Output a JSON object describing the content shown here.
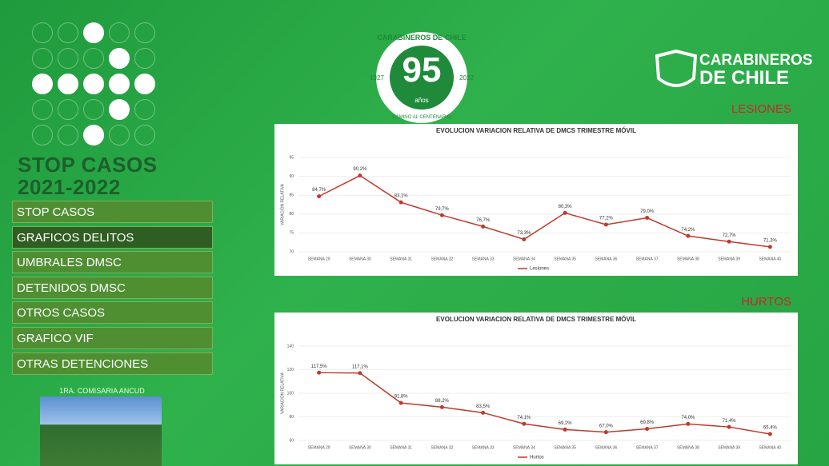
{
  "sidebar": {
    "title": "STOP CASOS",
    "subtitle": "2021-2022",
    "menu": [
      "STOP CASOS",
      "GRAFICOS DELITOS",
      "UMBRALES DMSC",
      "DETENIDOS DMSC",
      "OTROS CASOS",
      "GRAFICO VIF",
      "OTRAS DETENCIONES"
    ],
    "station": "1RA. COMISARIA ANCUD"
  },
  "header": {
    "emblem_ring": "CARABINEROS DE CHILE",
    "emblem_number": "95",
    "emblem_unit": "años",
    "emblem_start": "1927",
    "emblem_end": "2022",
    "emblem_motto": "CAMINO AL CENTENARIO",
    "brand_line1": "CARABINEROS",
    "brand_line2": "DE CHILE"
  },
  "chart_data": [
    {
      "type": "line",
      "section": "LESIONES",
      "title": "EVOLUCION VARIACION RELATIVA DE DMCS TRIMESTRE MÓVIL",
      "y_label": "VARIACIÓN RELATIVA",
      "categories": [
        "SEMANA 29",
        "SEMANA 30",
        "SEMANA 31",
        "SEMANA 32",
        "SEMANA 33",
        "SEMANA 34",
        "SEMANA 35",
        "SEMANA 36",
        "SEMANA 37",
        "SEMANA 38",
        "SEMANA 39",
        "SEMANA 40"
      ],
      "series": [
        {
          "name": "Lesiones",
          "color": "#c0392b",
          "values": [
            84.7,
            90.2,
            83.1,
            79.7,
            76.7,
            73.3,
            80.3,
            77.2,
            79.0,
            74.2,
            72.7,
            71.3
          ],
          "value_labels": [
            "84,7%",
            "90,2%",
            "83,1%",
            "79,7%",
            "76,7%",
            "73,3%",
            "80,3%",
            "77,2%",
            "79,0%",
            "74,2%",
            "72,7%",
            "71,3%"
          ]
        }
      ],
      "ylim": [
        70,
        95
      ],
      "yticks": [
        70,
        75,
        80,
        85,
        90,
        95
      ]
    },
    {
      "type": "line",
      "section": "HURTOS",
      "title": "EVOLUCION VARIACION RELATIVA DE DMCS TRIMESTRE MÓVIL",
      "y_label": "VARIACIÓN RELATIVA",
      "categories": [
        "SEMANA 29",
        "SEMANA 30",
        "SEMANA 31",
        "SEMANA 32",
        "SEMANA 33",
        "SEMANA 34",
        "SEMANA 35",
        "SEMANA 36",
        "SEMANA 37",
        "SEMANA 38",
        "SEMANA 39",
        "SEMANA 40"
      ],
      "series": [
        {
          "name": "Hurtos",
          "color": "#c0392b",
          "values": [
            117.5,
            117.1,
            91.8,
            88.2,
            83.5,
            74.1,
            69.2,
            67.0,
            69.8,
            74.0,
            71.4,
            65.4
          ],
          "value_labels": [
            "117,5%",
            "117,1%",
            "91,8%",
            "88,2%",
            "83,5%",
            "74,1%",
            "69,2%",
            "67,0%",
            "69,8%",
            "74,0%",
            "71,4%",
            "65,4%"
          ]
        }
      ],
      "ylim": [
        60,
        140
      ],
      "yticks": [
        60,
        80,
        100,
        120,
        140
      ]
    }
  ]
}
